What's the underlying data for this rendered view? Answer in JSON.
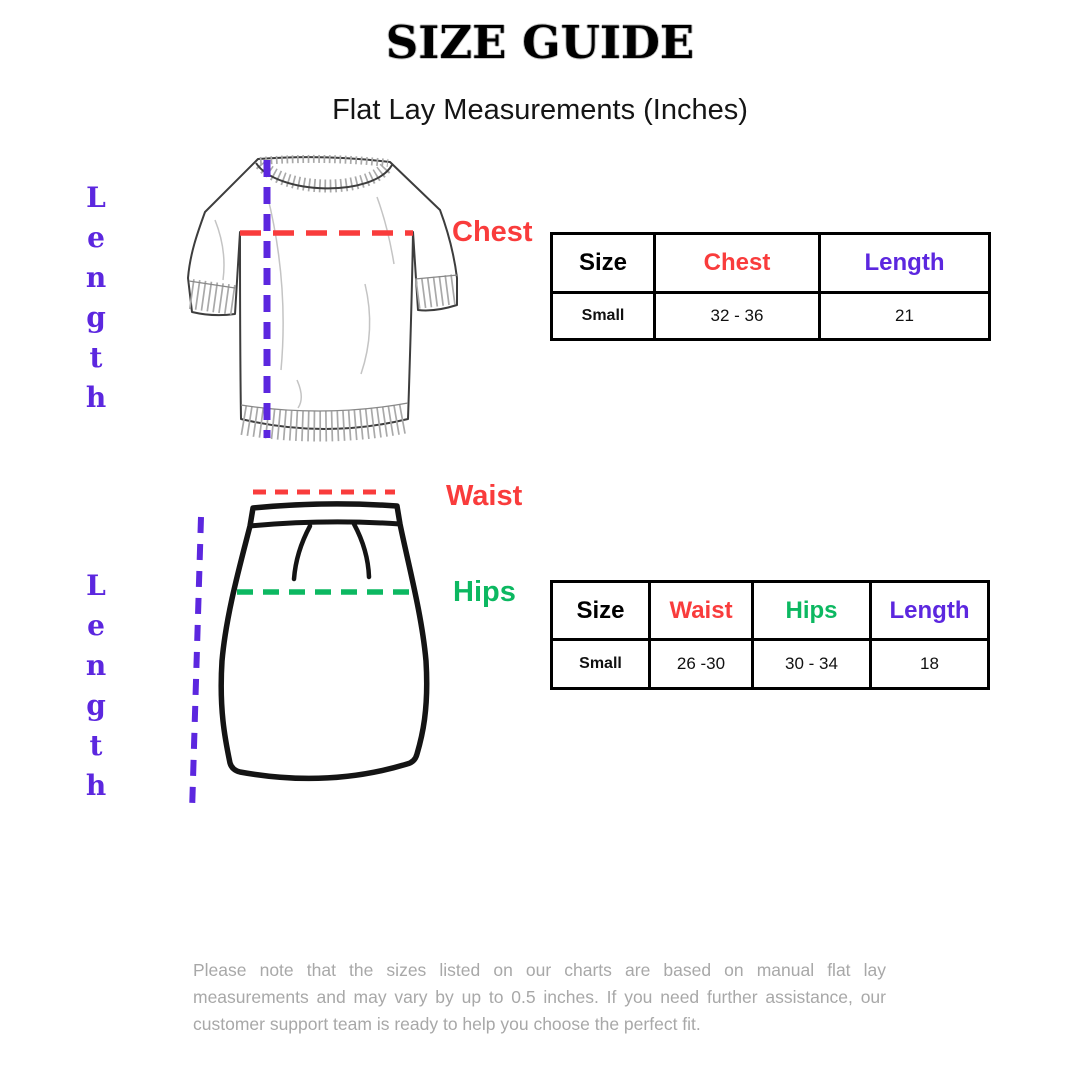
{
  "title": "SIZE GUIDE",
  "subtitle": "Flat Lay Measurements (Inches)",
  "colors": {
    "red": "#F93C3C",
    "green": "#0CB861",
    "purple": "#5C27DF",
    "footer_gray": "#A8A8A8",
    "table_border": "#000000"
  },
  "shirt_section": {
    "length_label": "Length",
    "chest_label": "Chest",
    "table": {
      "headers": {
        "size": "Size",
        "chest": "Chest",
        "length": "Length"
      },
      "row": {
        "size": "Small",
        "chest": "32 - 36",
        "length": "21"
      }
    }
  },
  "skirt_section": {
    "length_label": "Length",
    "waist_label": "Waist",
    "hips_label": "Hips",
    "table": {
      "headers": {
        "size": "Size",
        "waist": "Waist",
        "hips": "Hips",
        "length": "Length"
      },
      "row": {
        "size": "Small",
        "waist": "26 -30",
        "hips": "30 - 34",
        "length": "18"
      }
    }
  },
  "footer_note": "Please note that the sizes listed on our charts are based on manual flat lay measurements and may vary by up to 0.5 inches. If you need further assistance, our customer support team is ready to help you choose the perfect fit."
}
